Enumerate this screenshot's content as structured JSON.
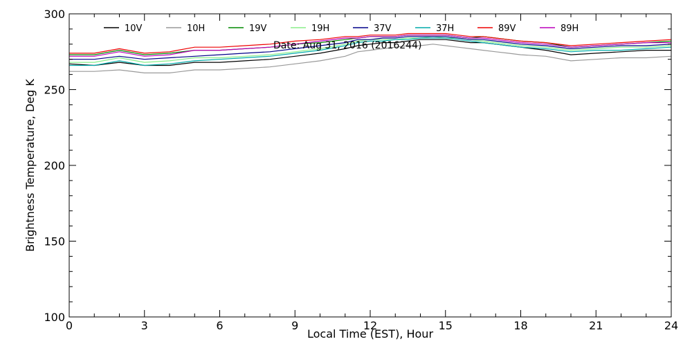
{
  "chart_data": {
    "type": "line",
    "title": "",
    "annotation": "Date: Aug 31, 2016 (2016244)",
    "xlabel": "Local Time (EST), Hour",
    "ylabel": "Brightness Temperature, Deg K",
    "xlim": [
      0,
      24
    ],
    "ylim": [
      100,
      300
    ],
    "xticks": [
      0,
      3,
      6,
      9,
      12,
      15,
      18,
      21,
      24
    ],
    "yticks": [
      100,
      150,
      200,
      250,
      300
    ],
    "grid": false,
    "legend_position": "top",
    "x": [
      0,
      1,
      2,
      3,
      4,
      5,
      6,
      7,
      8,
      9,
      10,
      11,
      11.5,
      12,
      12.5,
      13,
      13.5,
      14,
      14.5,
      15,
      15.5,
      16,
      16.5,
      17,
      17.5,
      18,
      19,
      20,
      21,
      22,
      23,
      24
    ],
    "series": [
      {
        "name": "10V",
        "color": "#000000",
        "values": [
          267,
          266,
          268,
          266,
          266,
          268,
          268,
          269,
          270,
          272,
          274,
          277,
          279,
          280,
          281,
          281,
          282,
          283,
          283,
          283,
          282,
          281,
          281,
          280,
          279,
          278,
          276,
          273,
          274,
          275,
          276,
          276
        ]
      },
      {
        "name": "10H",
        "color": "#999999",
        "values": [
          262,
          262,
          263,
          261,
          261,
          263,
          263,
          264,
          265,
          267,
          269,
          272,
          275,
          276,
          277,
          278,
          279,
          279,
          280,
          279,
          278,
          277,
          276,
          275,
          274,
          273,
          272,
          269,
          270,
          271,
          271,
          272
        ]
      },
      {
        "name": "19V",
        "color": "#008800",
        "values": [
          273,
          273,
          276,
          273,
          274,
          276,
          276,
          277,
          278,
          280,
          281,
          283,
          284,
          285,
          285,
          285,
          286,
          286,
          286,
          286,
          285,
          284,
          285,
          284,
          283,
          282,
          281,
          278,
          279,
          280,
          281,
          282
        ]
      },
      {
        "name": "19H",
        "color": "#88ee88",
        "values": [
          268,
          268,
          271,
          268,
          269,
          271,
          271,
          272,
          273,
          275,
          277,
          280,
          282,
          283,
          283,
          283,
          284,
          284,
          285,
          284,
          284,
          283,
          282,
          281,
          280,
          279,
          278,
          276,
          277,
          278,
          278,
          279
        ]
      },
      {
        "name": "37V",
        "color": "#000088",
        "values": [
          270,
          270,
          272,
          270,
          271,
          272,
          273,
          274,
          275,
          277,
          279,
          281,
          283,
          283,
          284,
          284,
          285,
          285,
          285,
          285,
          284,
          283,
          283,
          282,
          281,
          280,
          279,
          277,
          278,
          279,
          279,
          280
        ]
      },
      {
        "name": "37H",
        "color": "#00aaaa",
        "values": [
          266,
          266,
          269,
          266,
          267,
          269,
          270,
          271,
          272,
          274,
          276,
          279,
          281,
          282,
          282,
          283,
          283,
          284,
          284,
          284,
          283,
          282,
          281,
          280,
          279,
          278,
          277,
          275,
          276,
          276,
          277,
          278
        ]
      },
      {
        "name": "89V",
        "color": "#ee0000",
        "values": [
          274,
          274,
          277,
          274,
          275,
          278,
          278,
          279,
          280,
          282,
          283,
          285,
          285,
          286,
          286,
          286,
          287,
          287,
          287,
          287,
          286,
          285,
          285,
          284,
          283,
          282,
          281,
          279,
          280,
          281,
          282,
          283
        ]
      },
      {
        "name": "89H",
        "color": "#bb00bb",
        "values": [
          272,
          272,
          275,
          272,
          273,
          276,
          276,
          277,
          278,
          280,
          282,
          284,
          284,
          285,
          285,
          285,
          286,
          286,
          286,
          286,
          285,
          284,
          284,
          283,
          282,
          281,
          280,
          278,
          279,
          280,
          281,
          281
        ]
      }
    ]
  }
}
